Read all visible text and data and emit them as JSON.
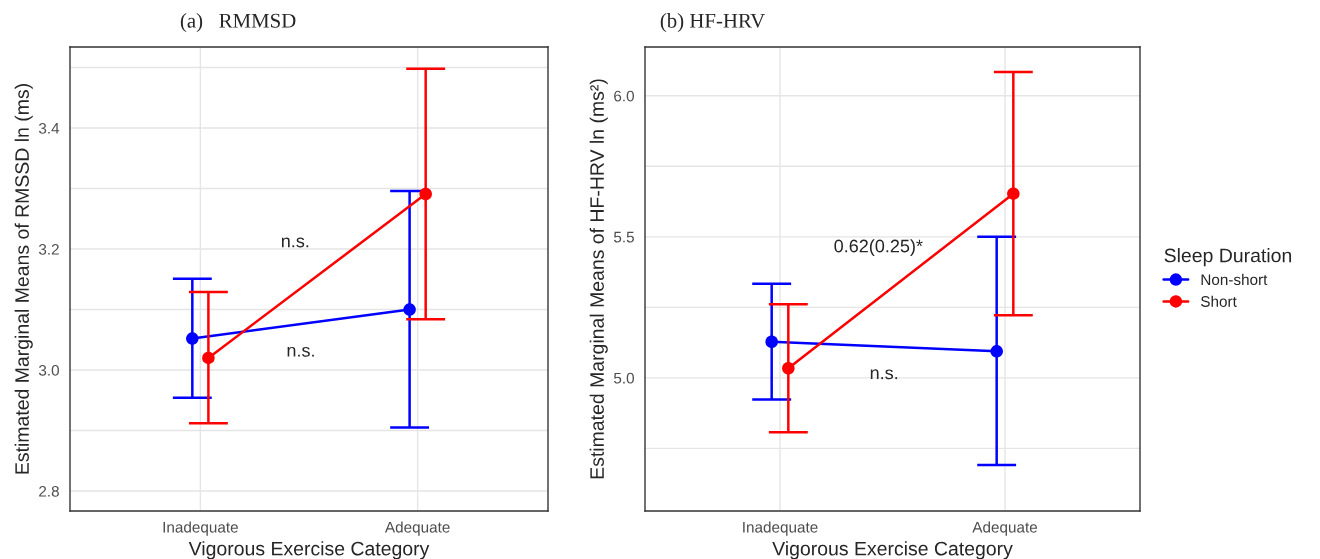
{
  "chart_data": [
    {
      "type": "line",
      "title": "(a)   RMMSD",
      "xlabel": "Vigorous Exercise Category",
      "ylabel": "Estimated Marginal Means of RMSSD ln (ms)",
      "categories": [
        "Inadequate",
        "Adequate"
      ],
      "series": [
        {
          "color": "#0000ff",
          "values": [
            3.052,
            3.1
          ],
          "errors": [
            [
              2.954,
              3.151
            ],
            [
              2.905,
              3.296
            ]
          ]
        },
        {
          "color": "#ff0000",
          "values": [
            3.02,
            3.291
          ],
          "errors": [
            [
              2.912,
              3.129
            ],
            [
              3.084,
              3.498
            ]
          ]
        }
      ],
      "ylim": [
        2.767,
        3.534
      ],
      "yticks": [
        2.8,
        {
          "value": 2.9,
          "label": null
        },
        {
          "value": 3.0,
          "label": "3.0"
        },
        {
          "value": 3.1,
          "label": null
        },
        3.2,
        {
          "value": 3.3,
          "label": null
        },
        3.4,
        {
          "value": 3.5,
          "label": null
        }
      ],
      "annotations": [
        "n.s.",
        "n.s."
      ],
      "grid": true,
      "marker": "circle",
      "line_style": "solid"
    },
    {
      "type": "line",
      "title": "(b) HF-HRV",
      "xlabel": "Vigorous Exercise Category",
      "ylabel": "Estimated Marginal Means of HF-HRV ln (ms²)",
      "legend_title": "Sleep Duration",
      "categories": [
        "Inadequate",
        "Adequate"
      ],
      "series": [
        {
          "name": "Non-short",
          "color": "#0000ff",
          "values": [
            5.128,
            5.094
          ],
          "errors": [
            [
              4.923,
              5.334
            ],
            [
              4.691,
              5.5
            ]
          ]
        },
        {
          "name": "Short",
          "color": "#ff0000",
          "values": [
            5.034,
            5.653
          ],
          "errors": [
            [
              4.807,
              5.261
            ],
            [
              5.222,
              6.084
            ]
          ]
        }
      ],
      "ylim": [
        4.528,
        6.173
      ],
      "yticks": [
        {
          "value": 4.75,
          "label": null
        },
        {
          "value": 5.0,
          "label": "5.0"
        },
        {
          "value": 5.25,
          "label": null
        },
        5.5,
        {
          "value": 5.75,
          "label": null
        },
        {
          "value": 6.0,
          "label": "6.0"
        }
      ],
      "annotations": [
        "0.62(0.25)*",
        "n.s."
      ],
      "grid": true,
      "marker": "circle",
      "line_style": "solid",
      "legend": "right"
    }
  ]
}
